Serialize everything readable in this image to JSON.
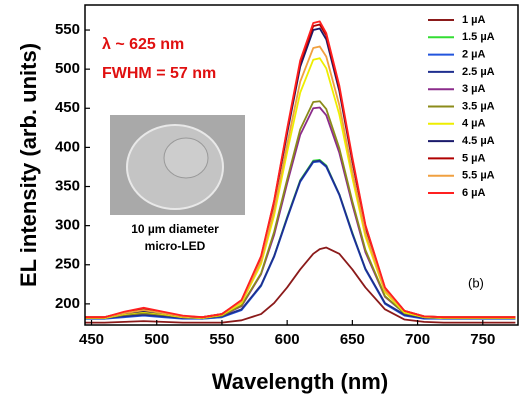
{
  "chart_data": {
    "type": "line",
    "x_label": "Wavelength (nm)",
    "y_label": "EL intensity (arb. units)",
    "annotations": [
      "λ ~ 625 nm",
      "FWHM = 57 nm"
    ],
    "inset_caption": [
      "10 µm diameter",
      "micro-LED"
    ],
    "panel_label": "(b)",
    "legend": "upper right",
    "grid": false,
    "xlim": [
      445,
      777
    ],
    "ylim": [
      173,
      582
    ],
    "xticks": [
      450,
      500,
      550,
      600,
      650,
      700,
      750
    ],
    "yticks": [
      200,
      250,
      300,
      350,
      400,
      450,
      500,
      550
    ],
    "x": [
      445,
      460,
      475,
      490,
      505,
      520,
      535,
      550,
      565,
      580,
      590,
      600,
      610,
      620,
      625,
      630,
      640,
      650,
      660,
      675,
      690,
      705,
      720,
      740,
      760,
      775
    ],
    "series": [
      {
        "name": "1 µA",
        "color": "#8b1a1a",
        "values": [
          176,
          176,
          177,
          178,
          177,
          176,
          176,
          176,
          179,
          187,
          201,
          221,
          244,
          264,
          270,
          272,
          264,
          244,
          221,
          193,
          180,
          177,
          176,
          176,
          176,
          176
        ]
      },
      {
        "name": "1.5 µA",
        "color": "#33dd33",
        "values": [
          181,
          181,
          184,
          186,
          184,
          182,
          181,
          183,
          193,
          223,
          261,
          311,
          358,
          383,
          384,
          377,
          340,
          291,
          244,
          201,
          186,
          182,
          181,
          181,
          181,
          181
        ]
      },
      {
        "name": "2 µA",
        "color": "#2255dd",
        "values": [
          181,
          181,
          183,
          185,
          183,
          181,
          181,
          183,
          192,
          223,
          260,
          309,
          356,
          381,
          382,
          375,
          339,
          289,
          244,
          200,
          185,
          181,
          181,
          181,
          181,
          181
        ]
      },
      {
        "name": "2.5 µA",
        "color": "#1f2f8f",
        "values": [
          182,
          182,
          184,
          186,
          184,
          182,
          182,
          184,
          193,
          224,
          261,
          310,
          357,
          382,
          383,
          376,
          340,
          290,
          245,
          201,
          186,
          182,
          182,
          182,
          182,
          182
        ]
      },
      {
        "name": "3 µA",
        "color": "#8b2c8b",
        "values": [
          182,
          182,
          186,
          188,
          186,
          183,
          182,
          185,
          197,
          238,
          288,
          354,
          416,
          450,
          451,
          441,
          393,
          327,
          266,
          209,
          188,
          183,
          182,
          182,
          182,
          182
        ]
      },
      {
        "name": "3.5 µA",
        "color": "#8b8b1a",
        "values": [
          182,
          182,
          186,
          188,
          186,
          183,
          182,
          185,
          198,
          239,
          292,
          359,
          423,
          458,
          459,
          449,
          399,
          331,
          269,
          210,
          188,
          183,
          182,
          182,
          182,
          182
        ]
      },
      {
        "name": "4 µA",
        "color": "#eeee00",
        "values": [
          182,
          182,
          187,
          190,
          187,
          183,
          182,
          186,
          201,
          251,
          313,
          394,
          470,
          512,
          514,
          501,
          442,
          361,
          286,
          215,
          189,
          183,
          182,
          182,
          182,
          182
        ]
      },
      {
        "name": "4.5 µA",
        "color": "#1a1a6b",
        "values": [
          183,
          183,
          188,
          191,
          188,
          184,
          183,
          187,
          204,
          259,
          329,
          418,
          503,
          550,
          552,
          538,
          472,
          382,
          298,
          220,
          191,
          184,
          183,
          183,
          183,
          183
        ]
      },
      {
        "name": "5 µA",
        "color": "#b00000",
        "values": [
          183,
          183,
          189,
          193,
          189,
          184,
          183,
          187,
          204,
          260,
          331,
          422,
          508,
          555,
          557,
          543,
          476,
          384,
          300,
          220,
          191,
          184,
          183,
          183,
          183,
          183
        ]
      },
      {
        "name": "5.5 µA",
        "color": "#f0a040",
        "values": [
          183,
          183,
          188,
          192,
          188,
          184,
          183,
          187,
          203,
          255,
          320,
          404,
          484,
          527,
          529,
          516,
          454,
          369,
          291,
          217,
          191,
          184,
          183,
          183,
          183,
          183
        ]
      },
      {
        "name": "6 µA",
        "color": "#ff2020",
        "values": [
          183,
          183,
          190,
          195,
          190,
          185,
          183,
          187,
          205,
          261,
          332,
          424,
          511,
          559,
          561,
          546,
          479,
          387,
          301,
          221,
          191,
          184,
          183,
          183,
          183,
          183
        ]
      }
    ]
  }
}
